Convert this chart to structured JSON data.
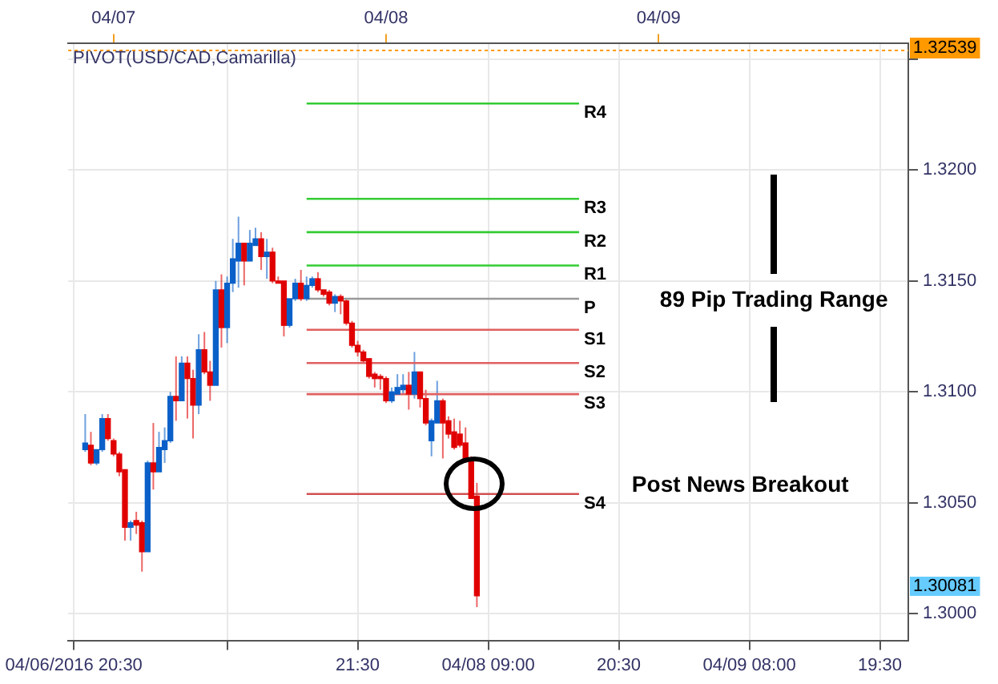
{
  "chart_data": {
    "type": "candlestick",
    "title": "PIVOT(USD/CAD,Camarilla)",
    "x": [
      "2016-04-06T21:30",
      "2016-04-06T22:00",
      "2016-04-06T22:30",
      "2016-04-06T23:00",
      "2016-04-06T23:30",
      "2016-04-07T00:00",
      "2016-04-07T00:30",
      "2016-04-07T01:00",
      "2016-04-07T01:30",
      "2016-04-07T02:00",
      "2016-04-07T02:30",
      "2016-04-07T03:00",
      "2016-04-07T03:30",
      "2016-04-07T04:00",
      "2016-04-07T04:30",
      "2016-04-07T05:00",
      "2016-04-07T05:30",
      "2016-04-07T06:00",
      "2016-04-07T06:30",
      "2016-04-07T07:00",
      "2016-04-07T07:30",
      "2016-04-07T08:00",
      "2016-04-07T08:30",
      "2016-04-07T09:00",
      "2016-04-07T09:30",
      "2016-04-07T10:00",
      "2016-04-07T10:30",
      "2016-04-07T11:00",
      "2016-04-07T11:30",
      "2016-04-07T12:00",
      "2016-04-07T12:30",
      "2016-04-07T13:00",
      "2016-04-07T13:30",
      "2016-04-07T14:00",
      "2016-04-07T14:30",
      "2016-04-07T15:00",
      "2016-04-07T15:30",
      "2016-04-07T16:00",
      "2016-04-07T16:30",
      "2016-04-07T17:00",
      "2016-04-07T17:30",
      "2016-04-07T18:00",
      "2016-04-07T18:30",
      "2016-04-07T19:00",
      "2016-04-07T19:30",
      "2016-04-07T20:00",
      "2016-04-07T20:30",
      "2016-04-07T21:00",
      "2016-04-07T21:30",
      "2016-04-07T22:00",
      "2016-04-07T22:30",
      "2016-04-07T23:00",
      "2016-04-07T23:30",
      "2016-04-08T00:00",
      "2016-04-08T00:30",
      "2016-04-08T01:00",
      "2016-04-08T01:30",
      "2016-04-08T02:00",
      "2016-04-08T02:30",
      "2016-04-08T03:00",
      "2016-04-08T03:30",
      "2016-04-08T04:00",
      "2016-04-08T04:30",
      "2016-04-08T05:00",
      "2016-04-08T05:30",
      "2016-04-08T06:00",
      "2016-04-08T06:30",
      "2016-04-08T07:00",
      "2016-04-08T07:30",
      "2016-04-08T08:00"
    ],
    "ohlc": [
      [
        1.3074,
        1.309,
        1.3073,
        1.3077
      ],
      [
        1.3076,
        1.3082,
        1.3067,
        1.3068
      ],
      [
        1.3068,
        1.3074,
        1.3067,
        1.3074
      ],
      [
        1.3074,
        1.309,
        1.3073,
        1.3088
      ],
      [
        1.3088,
        1.309,
        1.3078,
        1.3079
      ],
      [
        1.3078,
        1.3079,
        1.3071,
        1.3072
      ],
      [
        1.3072,
        1.3073,
        1.3062,
        1.3064
      ],
      [
        1.3065,
        1.3065,
        1.3033,
        1.3039
      ],
      [
        1.3039,
        1.3042,
        1.3033,
        1.3041
      ],
      [
        1.3042,
        1.3046,
        1.3036,
        1.304
      ],
      [
        1.3041,
        1.3042,
        1.3019,
        1.3028
      ],
      [
        1.3028,
        1.3069,
        1.3028,
        1.3068
      ],
      [
        1.3068,
        1.3086,
        1.3056,
        1.3064
      ],
      [
        1.3064,
        1.3082,
        1.3064,
        1.3075
      ],
      [
        1.3074,
        1.3084,
        1.3068,
        1.3078
      ],
      [
        1.3078,
        1.31,
        1.3077,
        1.3098
      ],
      [
        1.3098,
        1.3116,
        1.3087,
        1.3096
      ],
      [
        1.3096,
        1.3116,
        1.3096,
        1.3113
      ],
      [
        1.3113,
        1.3116,
        1.3088,
        1.3106
      ],
      [
        1.3106,
        1.311,
        1.3079,
        1.3094
      ],
      [
        1.3094,
        1.3126,
        1.309,
        1.3119
      ],
      [
        1.3119,
        1.3127,
        1.3108,
        1.3109
      ],
      [
        1.3109,
        1.3114,
        1.3096,
        1.3103
      ],
      [
        1.3103,
        1.315,
        1.3103,
        1.3146
      ],
      [
        1.3146,
        1.3153,
        1.312,
        1.3129
      ],
      [
        1.3129,
        1.3152,
        1.3122,
        1.3149
      ],
      [
        1.3149,
        1.3169,
        1.3145,
        1.316
      ],
      [
        1.3159,
        1.3179,
        1.3147,
        1.3167
      ],
      [
        1.3167,
        1.3167,
        1.3148,
        1.3159
      ],
      [
        1.3159,
        1.3173,
        1.3159,
        1.3167
      ],
      [
        1.3166,
        1.3174,
        1.3166,
        1.3169
      ],
      [
        1.3169,
        1.3172,
        1.3155,
        1.3161
      ],
      [
        1.3161,
        1.3169,
        1.3151,
        1.3163
      ],
      [
        1.3163,
        1.3165,
        1.3149,
        1.315
      ],
      [
        1.315,
        1.3152,
        1.3149,
        1.3149
      ],
      [
        1.315,
        1.315,
        1.3125,
        1.313
      ],
      [
        1.313,
        1.3142,
        1.3129,
        1.3142
      ],
      [
        1.3142,
        1.3151,
        1.3141,
        1.3149
      ],
      [
        1.3149,
        1.3155,
        1.3141,
        1.3142
      ],
      [
        1.3142,
        1.3152,
        1.3141,
        1.3148
      ],
      [
        1.3148,
        1.3152,
        1.3147,
        1.3151
      ],
      [
        1.3151,
        1.3154,
        1.3145,
        1.3146
      ],
      [
        1.3146,
        1.3146,
        1.3143,
        1.3144
      ],
      [
        1.3145,
        1.3146,
        1.3139,
        1.314
      ],
      [
        1.314,
        1.3144,
        1.3136,
        1.3143
      ],
      [
        1.3143,
        1.3144,
        1.3135,
        1.3141
      ],
      [
        1.3141,
        1.3142,
        1.313,
        1.3131
      ],
      [
        1.3131,
        1.3132,
        1.312,
        1.3121
      ],
      [
        1.3121,
        1.3123,
        1.3116,
        1.3118
      ],
      [
        1.3118,
        1.3119,
        1.3113,
        1.3114
      ],
      [
        1.3115,
        1.3115,
        1.3106,
        1.3107
      ],
      [
        1.3108,
        1.3109,
        1.3102,
        1.3106
      ],
      [
        1.3107,
        1.3108,
        1.3101,
        1.3106
      ],
      [
        1.3106,
        1.3107,
        1.3095,
        1.3096
      ],
      [
        1.3096,
        1.3102,
        1.3095,
        1.31
      ],
      [
        1.3099,
        1.3108,
        1.3099,
        1.3102
      ],
      [
        1.3101,
        1.3108,
        1.3099,
        1.3103
      ],
      [
        1.3103,
        1.3109,
        1.3092,
        1.3099
      ],
      [
        1.3099,
        1.3118,
        1.3097,
        1.3109
      ],
      [
        1.3109,
        1.3109,
        1.3093,
        1.3097
      ],
      [
        1.3097,
        1.3101,
        1.3085,
        1.3086
      ],
      [
        1.3078,
        1.3088,
        1.3071,
        1.3087
      ],
      [
        1.3086,
        1.3105,
        1.3086,
        1.3096
      ],
      [
        1.3096,
        1.3097,
        1.307,
        1.3086
      ],
      [
        1.3087,
        1.3089,
        1.3079,
        1.3081
      ],
      [
        1.3082,
        1.3088,
        1.3074,
        1.3075
      ],
      [
        1.3081,
        1.3087,
        1.3075,
        1.3076
      ],
      [
        1.3077,
        1.3084,
        1.3068,
        1.3069
      ],
      [
        1.307,
        1.3071,
        1.3052,
        1.3052
      ],
      [
        1.3053,
        1.3059,
        1.3003,
        1.30081
      ]
    ],
    "colors": [
      "#0a60c8",
      "#e00000",
      "#0a60c8",
      "#0a60c8",
      "#e00000",
      "#e00000",
      "#e00000",
      "#e00000",
      "#0a60c8",
      "#e00000",
      "#e00000",
      "#0a60c8",
      "#e00000",
      "#0a60c8",
      "#0a60c8",
      "#0a60c8",
      "#e00000",
      "#0a60c8",
      "#e00000",
      "#e00000",
      "#0a60c8",
      "#e00000",
      "#e00000",
      "#0a60c8",
      "#e00000",
      "#0a60c8",
      "#0a60c8",
      "#0a60c8",
      "#e00000",
      "#0a60c8",
      "#0a60c8",
      "#e00000",
      "#0a60c8",
      "#e00000",
      "#e00000",
      "#e00000",
      "#0a60c8",
      "#0a60c8",
      "#e00000",
      "#0a60c8",
      "#0a60c8",
      "#e00000",
      "#e00000",
      "#e00000",
      "#0a60c8",
      "#e00000",
      "#e00000",
      "#e00000",
      "#e00000",
      "#e00000",
      "#e00000",
      "#e00000",
      "#e00000",
      "#e00000",
      "#0a60c8",
      "#0a60c8",
      "#0a60c8",
      "#e00000",
      "#0a60c8",
      "#e00000",
      "#e00000",
      "#0a60c8",
      "#0a60c8",
      "#e00000",
      "#e00000",
      "#e00000",
      "#e00000",
      "#e00000",
      "#e00000",
      "#e00000"
    ],
    "series": [
      {
        "type": "line",
        "name": "R4",
        "color": "#33cc33",
        "x": [
          "2016-04-07T17:00",
          "2016-04-08T17:00"
        ],
        "values": [
          1.323,
          1.323
        ]
      },
      {
        "type": "line",
        "name": "R3",
        "color": "#33cc33",
        "x": [
          "2016-04-07T17:00",
          "2016-04-08T17:00"
        ],
        "values": [
          1.3187,
          1.3187
        ]
      },
      {
        "type": "line",
        "name": "R2",
        "color": "#33cc33",
        "x": [
          "2016-04-07T17:00",
          "2016-04-08T17:00"
        ],
        "values": [
          1.3172,
          1.3172
        ]
      },
      {
        "type": "line",
        "name": "R1",
        "color": "#33cc33",
        "x": [
          "2016-04-07T17:00",
          "2016-04-08T17:00"
        ],
        "values": [
          1.3157,
          1.3157
        ]
      },
      {
        "type": "line",
        "name": "P",
        "color": "#999999",
        "x": [
          "2016-04-07T17:00",
          "2016-04-08T17:00"
        ],
        "values": [
          1.3142,
          1.3142
        ]
      },
      {
        "type": "line",
        "name": "S1",
        "color": "#e06060",
        "x": [
          "2016-04-07T17:00",
          "2016-04-08T17:00"
        ],
        "values": [
          1.3128,
          1.3128
        ]
      },
      {
        "type": "line",
        "name": "S2",
        "color": "#e06060",
        "x": [
          "2016-04-07T17:00",
          "2016-04-08T17:00"
        ],
        "values": [
          1.3113,
          1.3113
        ]
      },
      {
        "type": "line",
        "name": "S3",
        "color": "#e06060",
        "x": [
          "2016-04-07T17:00",
          "2016-04-08T17:00"
        ],
        "values": [
          1.3099,
          1.3099
        ]
      },
      {
        "type": "line",
        "name": "S4",
        "color": "#d05050",
        "x": [
          "2016-04-07T17:00",
          "2016-04-08T17:00"
        ],
        "values": [
          1.3054,
          1.3054
        ]
      }
    ],
    "marker": "none",
    "xlim": [
      "2016-04-06T20:00",
      "2016-04-09T22:00"
    ],
    "xticks": [
      {
        "value": "2016-04-06T20:30",
        "label": "04/06/2016 20:30"
      },
      {
        "value": "2016-04-07T10:00",
        "label": null
      },
      {
        "value": "2016-04-07T21:30",
        "label": "21:30"
      },
      {
        "value": "2016-04-08T09:00",
        "label": "04/08 09:00"
      },
      {
        "value": "2016-04-08T20:30",
        "label": "20:30"
      },
      {
        "value": "2016-04-09T08:00",
        "label": "04/09 08:00"
      },
      {
        "value": "2016-04-09T19:30",
        "label": "19:30"
      }
    ],
    "x2lim": [
      "2016-04-06T20:00",
      "2016-04-09T22:00"
    ],
    "x2ticks": [
      {
        "value": "2016-04-07",
        "label": "04/07"
      },
      {
        "value": "2016-04-08",
        "label": "04/08"
      },
      {
        "value": "2016-04-09",
        "label": "04/09"
      }
    ],
    "ylim": [
      1.2988,
      1.3257
    ],
    "yticks": [
      {
        "value": 1.3,
        "label": "1.3000"
      },
      {
        "value": 1.305,
        "label": "1.3050"
      },
      {
        "value": 1.31,
        "label": "1.3100"
      },
      {
        "value": 1.315,
        "label": "1.3150"
      },
      {
        "value": 1.32,
        "label": "1.3200"
      },
      {
        "value": 1.325,
        "label": null
      }
    ],
    "grid": true,
    "legend": false,
    "ref_lines": [
      {
        "axis": "y",
        "value": 1.32539,
        "label": "1.32539",
        "color": "#ff9900",
        "line_style": "dotted"
      }
    ],
    "annotations": [
      "1.30081",
      "89 Pip Trading Range",
      "Post News Breakout"
    ]
  }
}
